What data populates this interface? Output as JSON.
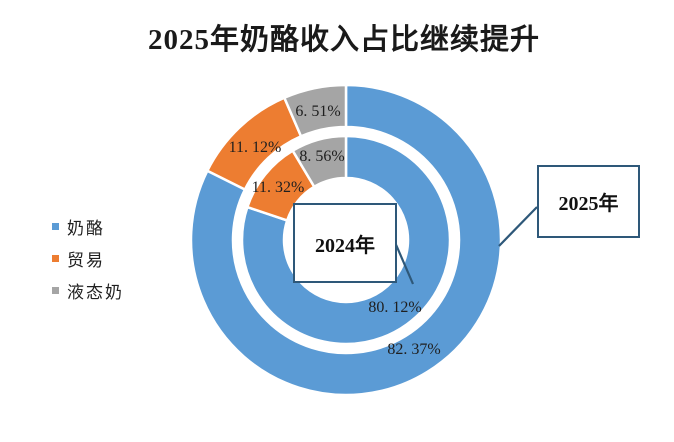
{
  "chart_data": {
    "type": "donut",
    "title": "2025年奶酪收入占比继续提升",
    "legend_position": "left",
    "legend": [
      "奶酪",
      "贸易",
      "液态奶"
    ],
    "colors": [
      "#5B9BD5",
      "#ED7D31",
      "#A5A5A5"
    ],
    "direction": "clockwise",
    "start_angle_deg": 0,
    "series": [
      {
        "name": "2024年",
        "ring": "inner",
        "categories": [
          "奶酪",
          "贸易",
          "液态奶"
        ],
        "values": [
          80.12,
          11.32,
          8.56
        ],
        "labels": [
          "80. 12%",
          "11. 32%",
          "8. 56%"
        ]
      },
      {
        "name": "2025年",
        "ring": "outer",
        "categories": [
          "奶酪",
          "贸易",
          "液态奶"
        ],
        "values": [
          82.37,
          11.12,
          6.51
        ],
        "labels": [
          "82. 37%",
          "11. 12%",
          "6. 51%"
        ]
      }
    ],
    "segment_border_color": "#ffffff",
    "label_color": "#1f1f1f",
    "callout_color": "#2E5879",
    "background": "#ffffff"
  }
}
